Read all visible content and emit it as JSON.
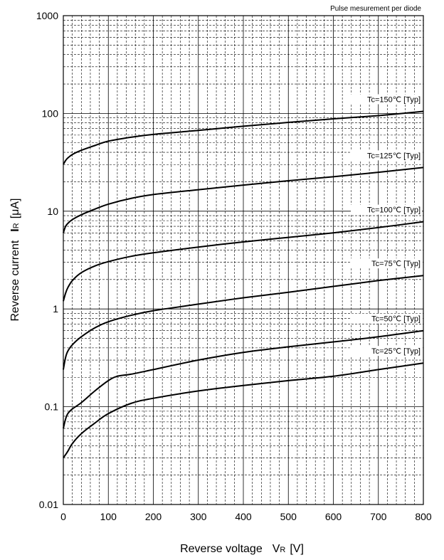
{
  "chart_data": {
    "type": "line",
    "note": "Pulse mesurement per diode",
    "xlabel": "Reverse voltage",
    "xlabel_symbol": "V",
    "xlabel_sub": "R",
    "xlabel_unit": "[V]",
    "ylabel": "Reverse current",
    "ylabel_symbol": "I",
    "ylabel_sub": "R",
    "ylabel_unit": "[μA]",
    "xlim": [
      0,
      800
    ],
    "ylim": [
      0.01,
      1000
    ],
    "y_scale": "log",
    "grid": true,
    "x_ticks": [
      0,
      100,
      200,
      300,
      400,
      500,
      600,
      700,
      800
    ],
    "x_tick_labels": [
      "0",
      "100",
      "200",
      "300",
      "400",
      "500",
      "600",
      "700",
      "800"
    ],
    "y_ticks": [
      0.01,
      0.1,
      1,
      10,
      100,
      1000
    ],
    "y_tick_labels": [
      "0.01",
      "0.1",
      "1",
      "10",
      "100",
      "1000"
    ],
    "series": [
      {
        "name": "Tc=150℃ [Typ]",
        "x": [
          0,
          5,
          10,
          20,
          40,
          70,
          100,
          150,
          200,
          300,
          400,
          500,
          600,
          700,
          800
        ],
        "y": [
          30,
          33,
          35,
          38,
          42,
          47,
          52,
          57,
          61,
          67,
          74,
          81,
          88,
          95,
          105
        ]
      },
      {
        "name": "Tc=125℃ [Typ]",
        "x": [
          0,
          5,
          10,
          20,
          40,
          70,
          100,
          150,
          200,
          300,
          400,
          500,
          600,
          700,
          800
        ],
        "y": [
          6,
          7,
          7.5,
          8.2,
          9.2,
          10.5,
          11.8,
          13.5,
          14.8,
          16.6,
          18.5,
          20.5,
          22.5,
          25,
          28
        ]
      },
      {
        "name": "Tc=100℃ [Typ]",
        "x": [
          0,
          5,
          10,
          20,
          40,
          70,
          100,
          150,
          200,
          300,
          400,
          500,
          600,
          700,
          800
        ],
        "y": [
          1.2,
          1.45,
          1.65,
          1.95,
          2.35,
          2.75,
          3.05,
          3.45,
          3.75,
          4.3,
          4.85,
          5.4,
          6.0,
          6.8,
          7.8
        ]
      },
      {
        "name": "Tc=75℃ [Typ]",
        "x": [
          0,
          5,
          10,
          20,
          40,
          70,
          100,
          150,
          200,
          300,
          400,
          500,
          600,
          700,
          800
        ],
        "y": [
          0.24,
          0.32,
          0.37,
          0.43,
          0.52,
          0.64,
          0.74,
          0.86,
          0.96,
          1.12,
          1.3,
          1.48,
          1.7,
          1.95,
          2.2
        ]
      },
      {
        "name": "Tc=50℃ [Typ]",
        "x": [
          0,
          5,
          10,
          20,
          40,
          70,
          100,
          120,
          150,
          200,
          300,
          400,
          500,
          600,
          700,
          800
        ],
        "y": [
          0.06,
          0.075,
          0.085,
          0.095,
          0.11,
          0.145,
          0.185,
          0.205,
          0.215,
          0.24,
          0.3,
          0.36,
          0.41,
          0.46,
          0.52,
          0.6
        ]
      },
      {
        "name": "Tc=25℃ [Typ]",
        "x": [
          0,
          10,
          20,
          40,
          70,
          100,
          150,
          200,
          300,
          400,
          500,
          600,
          700,
          800
        ],
        "y": [
          0.03,
          0.035,
          0.042,
          0.053,
          0.068,
          0.085,
          0.108,
          0.122,
          0.145,
          0.165,
          0.185,
          0.205,
          0.24,
          0.28
        ]
      }
    ]
  }
}
